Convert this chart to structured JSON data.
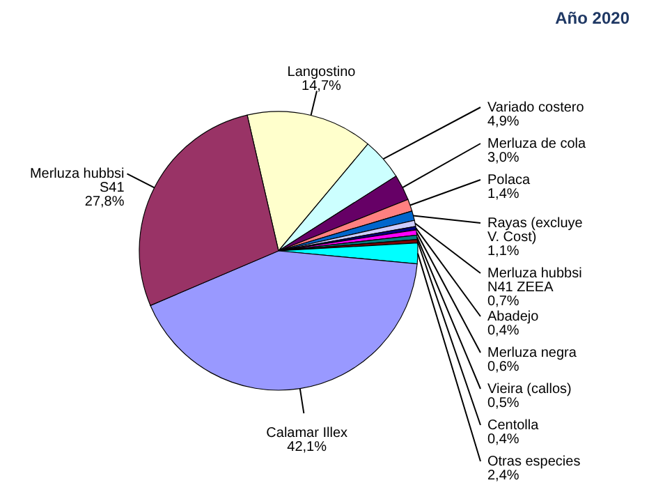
{
  "chart_data": {
    "type": "pie",
    "title": "Año 2020",
    "categories": [
      "Langostino",
      "Variado costero",
      "Merluza de cola",
      "Polaca",
      "Rayas (excluye V. Cost)",
      "Merluza hubbsi N41 ZEEA",
      "Abadejo",
      "Merluza negra",
      "Vieira (callos)",
      "Centolla",
      "Otras especies",
      "Calamar Illex",
      "Merluza hubbsi S41"
    ],
    "values": [
      14.7,
      4.9,
      3.0,
      1.4,
      1.1,
      0.7,
      0.4,
      0.6,
      0.5,
      0.4,
      2.4,
      42.1,
      27.8
    ],
    "value_labels": [
      "14,7%",
      "4,9%",
      "3,0%",
      "1,4%",
      "1,1%",
      "0,7%",
      "0,4%",
      "0,6%",
      "0,5%",
      "0,4%",
      "2,4%",
      "42,1%",
      "27,8%"
    ],
    "colors": [
      "#ffffcc",
      "#ccffff",
      "#660066",
      "#ff8080",
      "#0066cc",
      "#ccccff",
      "#000080",
      "#ff00ff",
      "#008080",
      "#800000",
      "#00ffff",
      "#9999ff",
      "#993366"
    ]
  }
}
